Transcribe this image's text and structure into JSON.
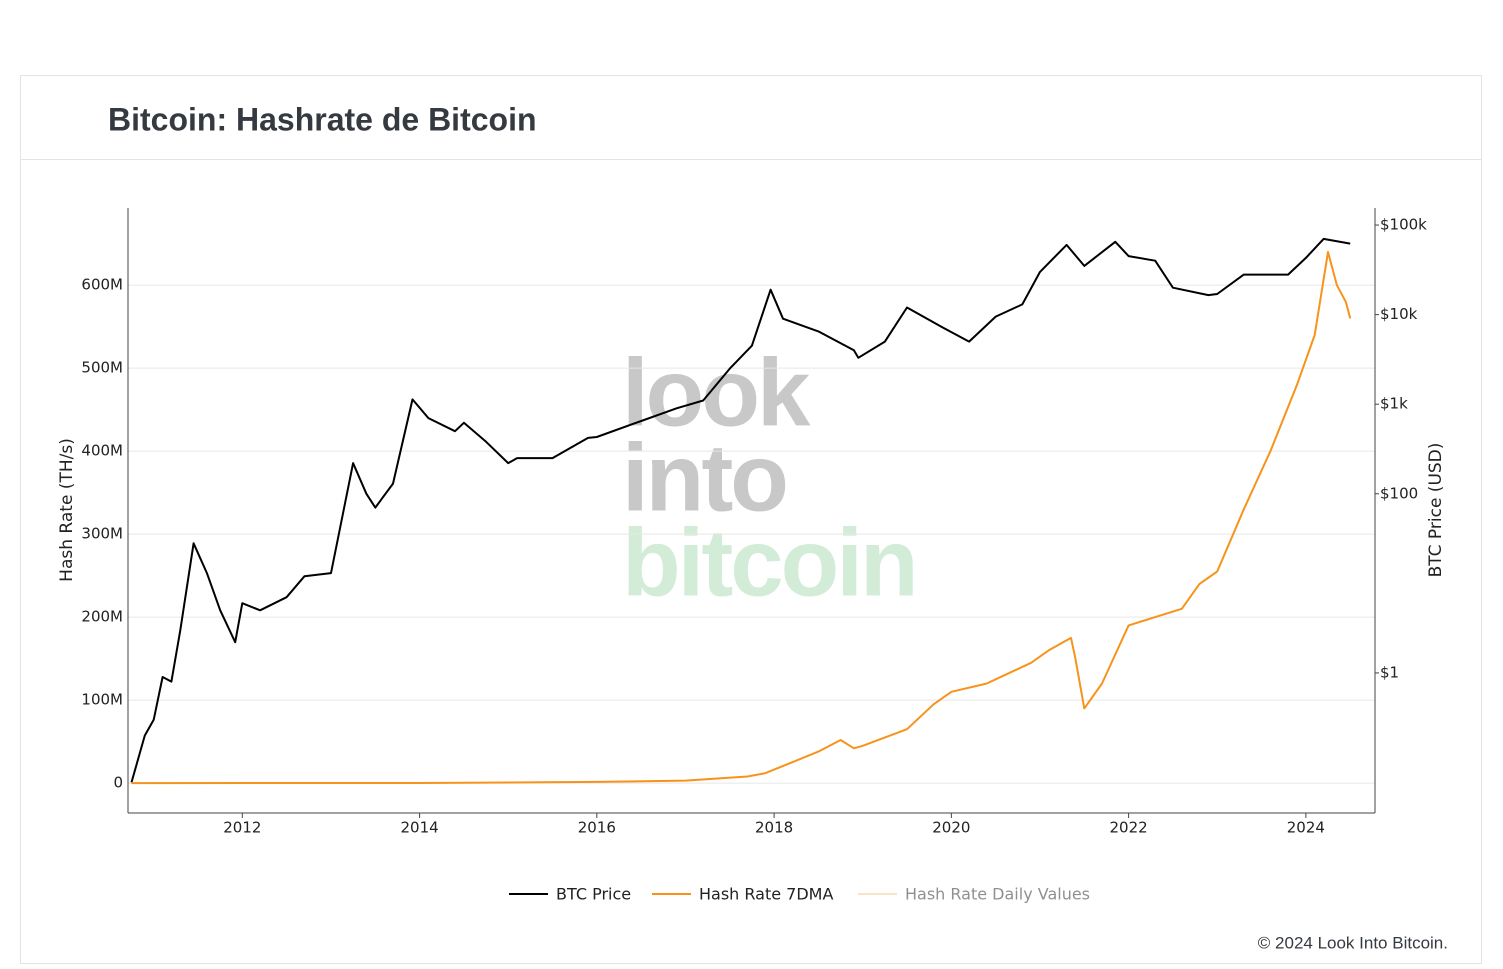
{
  "chart_data": {
    "type": "line",
    "title": "Bitcoin: Hashrate de Bitcoin",
    "y_label": "Hash Rate (TH/s)",
    "y2_label": "BTC Price (USD)",
    "watermark": [
      "look",
      "into",
      "bitcoin"
    ],
    "copyright": "© 2024 Look Into Bitcoin.",
    "xlim": [
      2010.71,
      2024.78
    ],
    "xticks": [
      2012,
      2014,
      2016,
      2018,
      2020,
      2022,
      2024
    ],
    "ylim": [
      -36000000,
      693000000
    ],
    "yticks": [
      0,
      {
        "value": 100000000,
        "label": "100M"
      },
      {
        "value": 200000000,
        "label": "200M"
      },
      {
        "value": 300000000,
        "label": "300M"
      },
      {
        "value": 400000000,
        "label": "400M"
      },
      {
        "value": 500000000,
        "label": "500M"
      },
      {
        "value": 600000000,
        "label": "600M"
      }
    ],
    "y2lim": [
      0.0273,
      155000
    ],
    "y2_log": true,
    "y2ticks": [
      {
        "value": 1,
        "label": "$1"
      },
      {
        "value": 100,
        "label": "$100"
      },
      {
        "value": 1000,
        "label": "$1k"
      },
      {
        "value": 10000,
        "label": "$10k"
      },
      {
        "value": 100000,
        "label": "$100k"
      }
    ],
    "grid": true,
    "series": [
      {
        "name": "BTC Price",
        "color": "#000000",
        "axis": "y2",
        "x": [
          2010.75,
          2010.9,
          2011.0,
          2011.1,
          2011.2,
          2011.3,
          2011.45,
          2011.6,
          2011.75,
          2011.92,
          2012.0,
          2012.2,
          2012.5,
          2012.7,
          2013.0,
          2013.25,
          2013.4,
          2013.5,
          2013.7,
          2013.92,
          2014.1,
          2014.4,
          2014.5,
          2014.75,
          2015.0,
          2015.1,
          2015.5,
          2015.9,
          2016.0,
          2016.5,
          2016.9,
          2017.2,
          2017.5,
          2017.75,
          2017.96,
          2018.1,
          2018.5,
          2018.9,
          2018.95,
          2019.25,
          2019.5,
          2019.9,
          2020.2,
          2020.5,
          2020.8,
          2021.0,
          2021.3,
          2021.5,
          2021.85,
          2022.0,
          2022.3,
          2022.5,
          2022.9,
          2023.0,
          2023.3,
          2023.8,
          2024.0,
          2024.2,
          2024.5
        ],
        "values": [
          0.06,
          0.2,
          0.3,
          0.9,
          0.8,
          3,
          28,
          13,
          5,
          2.2,
          6,
          5,
          7,
          12,
          13,
          220,
          100,
          70,
          130,
          1130,
          700,
          500,
          620,
          380,
          220,
          250,
          250,
          420,
          430,
          650,
          900,
          1100,
          2500,
          4500,
          19000,
          9000,
          6500,
          4000,
          3300,
          5000,
          12000,
          7200,
          5000,
          9500,
          13000,
          30000,
          60000,
          35000,
          65000,
          45000,
          40000,
          20000,
          16500,
          17000,
          28000,
          28000,
          43000,
          70000,
          62000
        ]
      },
      {
        "name": "Hash Rate 7DMA",
        "color": "#f7931a",
        "x": [
          2010.75,
          2014.0,
          2016.0,
          2017.0,
          2017.7,
          2017.9,
          2018.2,
          2018.5,
          2018.75,
          2018.9,
          2019.0,
          2019.5,
          2019.8,
          2020.0,
          2020.4,
          2020.6,
          2020.9,
          2021.1,
          2021.35,
          2021.4,
          2021.5,
          2021.7,
          2022.0,
          2022.3,
          2022.6,
          2022.8,
          2023.0,
          2023.3,
          2023.6,
          2023.9,
          2024.1,
          2024.25,
          2024.35,
          2024.45,
          2024.5
        ],
        "values": [
          0,
          100000,
          1500000,
          3000000,
          8000000,
          12000000,
          25000000,
          38000000,
          52000000,
          42000000,
          45000000,
          65000000,
          95000000,
          110000000,
          120000000,
          130000000,
          145000000,
          160000000,
          175000000,
          150000000,
          90000000,
          120000000,
          190000000,
          200000000,
          210000000,
          240000000,
          255000000,
          330000000,
          400000000,
          480000000,
          540000000,
          640000000,
          600000000,
          580000000,
          560000000
        ]
      },
      {
        "name": "Hash Rate Daily Values",
        "color": "#fbc98a",
        "visible": false
      }
    ]
  }
}
